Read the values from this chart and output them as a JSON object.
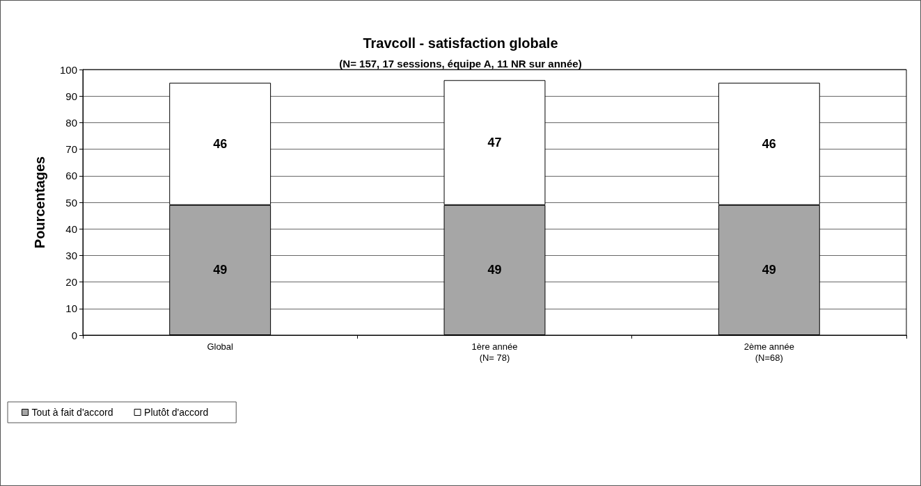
{
  "chart_data": {
    "type": "bar",
    "title": "Travcoll - satisfaction globale",
    "subtitle": "(N= 157, 17 sessions, équipe A, 11 NR sur année)",
    "ylabel": "Pourcentages",
    "categories": [
      "Global",
      "1ère année\n(N= 78)",
      "2ème année\n(N=68)"
    ],
    "series": [
      {
        "name": "Tout à fait d'accord",
        "color": "#a6a6a6",
        "values": [
          49,
          49,
          49
        ]
      },
      {
        "name": "Plutôt d'accord",
        "color": "#ffffff",
        "values": [
          46,
          47,
          46
        ]
      }
    ],
    "stacked": true,
    "data_labels": true,
    "ylim": [
      0,
      100
    ],
    "yticks": [
      0,
      10,
      20,
      30,
      40,
      50,
      60,
      70,
      80,
      90,
      100
    ],
    "grid": "y",
    "legend": "bottom left"
  }
}
